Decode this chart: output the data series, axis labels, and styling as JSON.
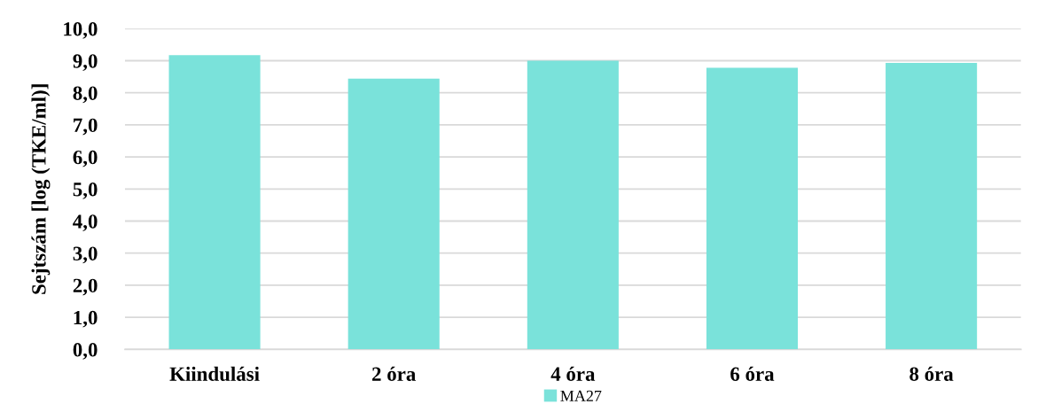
{
  "chart_data": {
    "type": "bar",
    "ylabel": "Sejtszám [log (TKE/ml)]",
    "categories": [
      "Kiindulási",
      "2 óra",
      "4 óra",
      "6 óra",
      "8 óra"
    ],
    "series": [
      {
        "name": "MA27",
        "color": "#7ae2da",
        "values": [
          9.17,
          8.44,
          9.0,
          8.78,
          8.93
        ]
      }
    ],
    "ylim": [
      0,
      10
    ],
    "yticks": [
      {
        "value": 0,
        "label": "0,0"
      },
      {
        "value": 1,
        "label": "1,0"
      },
      {
        "value": 2,
        "label": "2,0"
      },
      {
        "value": 3,
        "label": "3,0"
      },
      {
        "value": 4,
        "label": "4,0"
      },
      {
        "value": 5,
        "label": "5,0"
      },
      {
        "value": 6,
        "label": "6,0"
      },
      {
        "value": 7,
        "label": "7,0"
      },
      {
        "value": 8,
        "label": "8,0"
      },
      {
        "value": 9,
        "label": "9,0"
      },
      {
        "value": 10,
        "label": "10,0"
      }
    ],
    "grid": "y",
    "legend": "bottom"
  }
}
